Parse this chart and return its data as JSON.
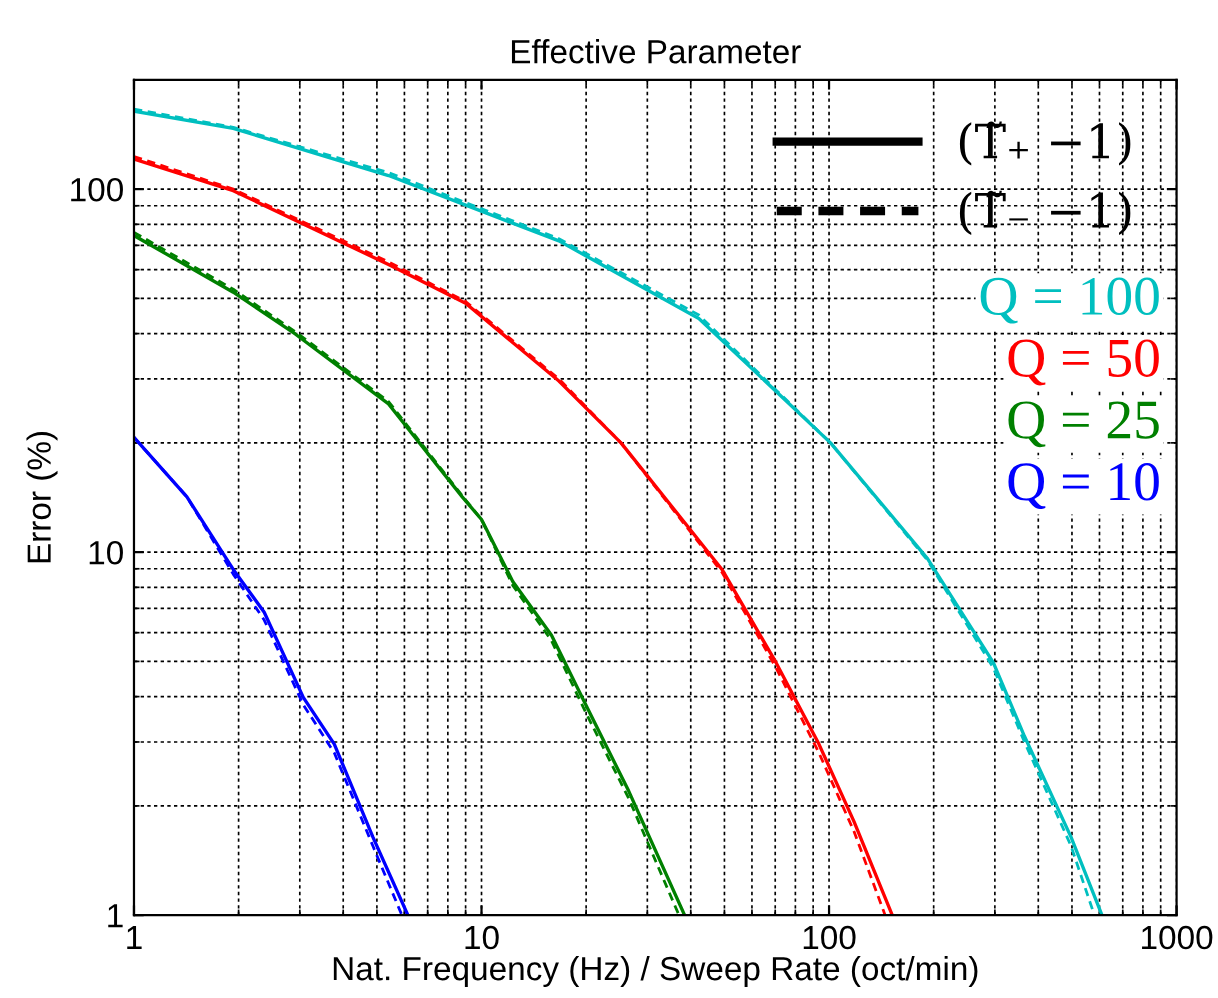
{
  "chart_data": {
    "type": "line",
    "title": "Effective Parameter",
    "xlabel": "Nat. Frequency (Hz) / Sweep Rate (oct/min)",
    "ylabel": "Error (%)",
    "log": "xy",
    "grid": true,
    "legend": "top right",
    "xlim": [
      1,
      1000
    ],
    "xticks": [
      1,
      10,
      100,
      1000
    ],
    "ylim": [
      1,
      200
    ],
    "yticks": [
      1,
      10,
      100
    ],
    "annotations": [
      "(T̃₊ −1)",
      "(T̃₋ −1)"
    ],
    "series": [
      {
        "name": "Q = 100",
        "color": "#00bfbf",
        "line_style": "solid",
        "x": [
          1,
          1.93,
          5.4,
          16.7,
          42.2,
          101,
          192,
          297,
          365,
          497,
          610
        ],
        "values": [
          164,
          147,
          109,
          72,
          44,
          20,
          9.6,
          4.96,
          3.11,
          1.64,
          1.0
        ]
      },
      {
        "name": "Q = 50",
        "color": "#ff0000",
        "line_style": "solid",
        "x": [
          1,
          1.93,
          5.4,
          9.0,
          16.7,
          25.2,
          49.2,
          70.4,
          93.5,
          118,
          152
        ],
        "values": [
          121,
          99,
          62,
          48.5,
          29.6,
          20,
          8.96,
          4.96,
          2.96,
          1.81,
          1.0
        ]
      },
      {
        "name": "Q = 25",
        "color": "#008000",
        "line_style": "solid",
        "x": [
          1,
          1.93,
          2.91,
          5.4,
          8.8,
          10,
          12.3,
          15.9,
          20,
          26.5,
          38.4
        ],
        "values": [
          74.5,
          52,
          39.9,
          25.6,
          14.2,
          12.3,
          8.3,
          5.9,
          3.78,
          2.2,
          1.0
        ]
      },
      {
        "name": "Q = 10",
        "color": "#0000ff",
        "line_style": "solid",
        "x": [
          1,
          1.42,
          1.93,
          2.37,
          3.07,
          3.77,
          4.87,
          6.14
        ],
        "values": [
          20.7,
          14.2,
          8.96,
          6.83,
          3.98,
          2.96,
          1.64,
          1.0
        ]
      },
      {
        "color": "#00bfbf",
        "line_style": "dashed",
        "x": [
          1,
          1.93,
          5.4,
          16.7,
          42.2,
          101,
          192,
          297,
          365,
          497,
          580
        ],
        "values": [
          166,
          148,
          111,
          73,
          45,
          20,
          9.5,
          4.8,
          3.0,
          1.55,
          1.0
        ]
      },
      {
        "color": "#ff0000",
        "line_style": "dashed",
        "x": [
          1,
          1.93,
          5.4,
          9.0,
          16.7,
          25.2,
          49.2,
          70.4,
          93.5,
          118,
          145
        ],
        "values": [
          123,
          100,
          63,
          49,
          30,
          20,
          8.8,
          4.8,
          2.8,
          1.7,
          1.0
        ]
      },
      {
        "color": "#008000",
        "line_style": "dashed",
        "x": [
          1,
          1.93,
          2.91,
          5.4,
          8.8,
          10,
          12.3,
          15.9,
          20,
          26.5,
          37
        ],
        "values": [
          76,
          53,
          40.5,
          26,
          14.3,
          12.3,
          8.1,
          5.7,
          3.6,
          2.1,
          1.0
        ]
      },
      {
        "color": "#0000ff",
        "line_style": "dashed",
        "x": [
          1,
          1.42,
          1.93,
          2.37,
          3.07,
          3.77,
          4.87,
          5.9
        ],
        "values": [
          20.7,
          14.2,
          8.7,
          6.5,
          3.8,
          2.8,
          1.55,
          1.0
        ]
      }
    ]
  }
}
